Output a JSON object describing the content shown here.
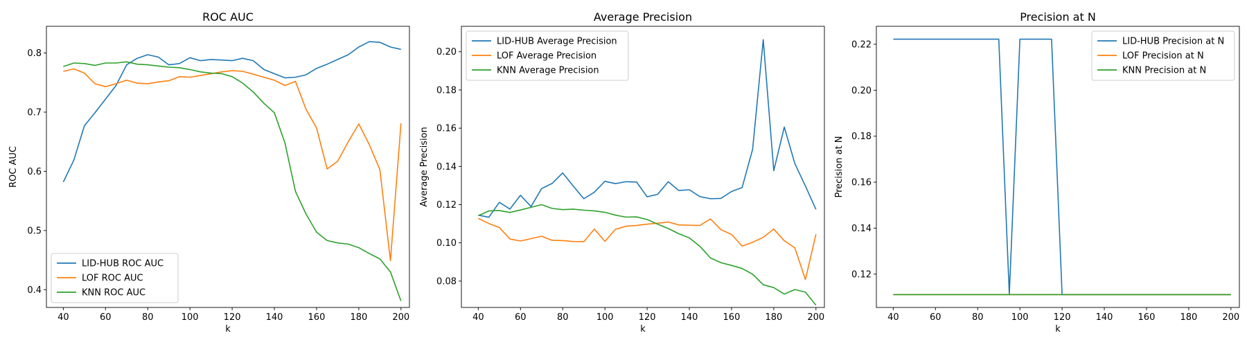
{
  "chart_data": [
    {
      "type": "line",
      "title": "ROC AUC",
      "xlabel": "k",
      "ylabel": "ROC AUC",
      "xlim": [
        32,
        204
      ],
      "ylim": [
        0.37,
        0.845
      ],
      "xticks": [
        40,
        60,
        80,
        100,
        120,
        140,
        160,
        180,
        200
      ],
      "yticks": [
        0.4,
        0.5,
        0.6,
        0.7,
        0.8
      ],
      "ytick_labels": [
        "0.4",
        "0.5",
        "0.6",
        "0.7",
        "0.8"
      ],
      "grid": false,
      "legend_position": "lower-left",
      "x": [
        40,
        45,
        50,
        55,
        60,
        65,
        70,
        75,
        80,
        85,
        90,
        95,
        100,
        105,
        110,
        115,
        120,
        125,
        130,
        135,
        140,
        145,
        150,
        155,
        160,
        165,
        170,
        175,
        180,
        185,
        190,
        195,
        200
      ],
      "series": [
        {
          "name": "LID-HUB ROC AUC",
          "color": "#1f77b4",
          "values": [
            0.582,
            0.619,
            0.677,
            0.699,
            0.722,
            0.745,
            0.78,
            0.791,
            0.797,
            0.793,
            0.78,
            0.782,
            0.792,
            0.787,
            0.789,
            0.788,
            0.787,
            0.791,
            0.787,
            0.772,
            0.765,
            0.758,
            0.759,
            0.763,
            0.774,
            0.781,
            0.789,
            0.797,
            0.81,
            0.819,
            0.818,
            0.81,
            0.806
          ]
        },
        {
          "name": "LOF ROC AUC",
          "color": "#ff7f0e",
          "values": [
            0.769,
            0.773,
            0.766,
            0.748,
            0.743,
            0.748,
            0.754,
            0.749,
            0.748,
            0.751,
            0.753,
            0.76,
            0.759,
            0.762,
            0.765,
            0.768,
            0.77,
            0.769,
            0.764,
            0.759,
            0.754,
            0.745,
            0.752,
            0.705,
            0.673,
            0.604,
            0.617,
            0.65,
            0.68,
            0.645,
            0.603,
            0.449,
            0.681
          ]
        },
        {
          "name": "KNN ROC AUC",
          "color": "#2ca02c",
          "values": [
            0.777,
            0.783,
            0.782,
            0.779,
            0.783,
            0.783,
            0.785,
            0.781,
            0.78,
            0.778,
            0.776,
            0.775,
            0.772,
            0.768,
            0.766,
            0.765,
            0.76,
            0.749,
            0.734,
            0.715,
            0.699,
            0.648,
            0.566,
            0.528,
            0.497,
            0.483,
            0.479,
            0.477,
            0.471,
            0.461,
            0.452,
            0.43,
            0.381
          ]
        }
      ]
    },
    {
      "type": "line",
      "title": "Average Precision",
      "xlabel": "k",
      "ylabel": "Average Precision",
      "xlim": [
        32,
        204
      ],
      "ylim": [
        0.0662,
        0.2133
      ],
      "xticks": [
        40,
        60,
        80,
        100,
        120,
        140,
        160,
        180,
        200
      ],
      "yticks": [
        0.08,
        0.1,
        0.12,
        0.14,
        0.16,
        0.18,
        0.2
      ],
      "ytick_labels": [
        "0.08",
        "0.10",
        "0.12",
        "0.14",
        "0.16",
        "0.18",
        "0.20"
      ],
      "grid": false,
      "legend_position": "top-left",
      "x": [
        40,
        45,
        50,
        55,
        60,
        65,
        70,
        75,
        80,
        85,
        90,
        95,
        100,
        105,
        110,
        115,
        120,
        125,
        130,
        135,
        140,
        145,
        150,
        155,
        160,
        165,
        170,
        175,
        180,
        185,
        190,
        195,
        200
      ],
      "series": [
        {
          "name": "LID-HUB Average Precision",
          "color": "#1f77b4",
          "values": [
            0.1145,
            0.1134,
            0.1212,
            0.1177,
            0.1249,
            0.119,
            0.1284,
            0.1311,
            0.1366,
            0.1297,
            0.1231,
            0.1265,
            0.1322,
            0.131,
            0.132,
            0.1318,
            0.1241,
            0.1254,
            0.132,
            0.1274,
            0.1278,
            0.1242,
            0.1231,
            0.1233,
            0.1269,
            0.1289,
            0.149,
            0.2063,
            0.1378,
            0.1606,
            0.1415,
            0.1297,
            0.1175
          ]
        },
        {
          "name": "LOF Average Precision",
          "color": "#ff7f0e",
          "values": [
            0.1128,
            0.1101,
            0.108,
            0.102,
            0.101,
            0.1022,
            0.1035,
            0.1013,
            0.1012,
            0.1007,
            0.1006,
            0.1072,
            0.1008,
            0.1071,
            0.1087,
            0.1091,
            0.1098,
            0.1103,
            0.1109,
            0.1094,
            0.1092,
            0.1091,
            0.1125,
            0.1069,
            0.1044,
            0.0983,
            0.1003,
            0.1029,
            0.1072,
            0.1011,
            0.0974,
            0.0808,
            0.1045
          ]
        },
        {
          "name": "KNN Average Precision",
          "color": "#2ca02c",
          "values": [
            0.1142,
            0.1167,
            0.1169,
            0.1159,
            0.1172,
            0.1186,
            0.12,
            0.118,
            0.1174,
            0.1176,
            0.1171,
            0.1167,
            0.116,
            0.1145,
            0.1135,
            0.1136,
            0.1122,
            0.1098,
            0.1075,
            0.1048,
            0.1026,
            0.0982,
            0.0921,
            0.0896,
            0.0882,
            0.0866,
            0.0836,
            0.0781,
            0.0766,
            0.0732,
            0.0756,
            0.0742,
            0.0674
          ]
        }
      ]
    },
    {
      "type": "line",
      "title": "Precision at N",
      "xlabel": "k",
      "ylabel": "Precision at N",
      "xlim": [
        32,
        204
      ],
      "ylim": [
        0.1055,
        0.2278
      ],
      "xticks": [
        40,
        60,
        80,
        100,
        120,
        140,
        160,
        180,
        200
      ],
      "yticks": [
        0.12,
        0.14,
        0.16,
        0.18,
        0.2,
        0.22
      ],
      "ytick_labels": [
        "0.12",
        "0.14",
        "0.16",
        "0.18",
        "0.20",
        "0.22"
      ],
      "grid": false,
      "legend_position": "top-right",
      "x": [
        40,
        45,
        50,
        55,
        60,
        65,
        70,
        75,
        80,
        85,
        90,
        95,
        100,
        105,
        110,
        115,
        120,
        125,
        130,
        135,
        140,
        145,
        150,
        155,
        160,
        165,
        170,
        175,
        180,
        185,
        190,
        195,
        200
      ],
      "series": [
        {
          "name": "LID-HUB Precision at N",
          "color": "#1f77b4",
          "values": [
            0.2222,
            0.2222,
            0.2222,
            0.2222,
            0.2222,
            0.2222,
            0.2222,
            0.2222,
            0.2222,
            0.2222,
            0.2222,
            0.1111,
            0.2222,
            0.2222,
            0.2222,
            0.2222,
            0.1111,
            0.1111,
            0.1111,
            0.1111,
            0.1111,
            0.1111,
            0.1111,
            0.1111,
            0.1111,
            0.1111,
            0.1111,
            0.1111,
            0.1111,
            0.1111,
            0.1111,
            0.1111,
            0.1111
          ]
        },
        {
          "name": "LOF Precision at N",
          "color": "#ff7f0e",
          "values": [
            0.1111,
            0.1111,
            0.1111,
            0.1111,
            0.1111,
            0.1111,
            0.1111,
            0.1111,
            0.1111,
            0.1111,
            0.1111,
            0.1111,
            0.1111,
            0.1111,
            0.1111,
            0.1111,
            0.1111,
            0.1111,
            0.1111,
            0.1111,
            0.1111,
            0.1111,
            0.1111,
            0.1111,
            0.1111,
            0.1111,
            0.1111,
            0.1111,
            0.1111,
            0.1111,
            0.1111,
            0.1111,
            0.1111
          ]
        },
        {
          "name": "KNN Precision at N",
          "color": "#2ca02c",
          "values": [
            0.1111,
            0.1111,
            0.1111,
            0.1111,
            0.1111,
            0.1111,
            0.1111,
            0.1111,
            0.1111,
            0.1111,
            0.1111,
            0.1111,
            0.1111,
            0.1111,
            0.1111,
            0.1111,
            0.1111,
            0.1111,
            0.1111,
            0.1111,
            0.1111,
            0.1111,
            0.1111,
            0.1111,
            0.1111,
            0.1111,
            0.1111,
            0.1111,
            0.1111,
            0.1111,
            0.1111,
            0.1111,
            0.1111
          ]
        }
      ]
    }
  ]
}
